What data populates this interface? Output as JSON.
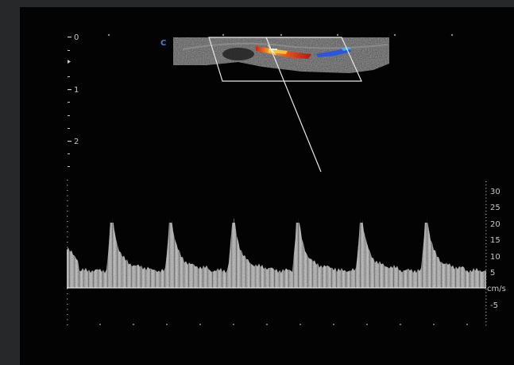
{
  "depth_scale": {
    "labels": [
      "0",
      "1",
      "2"
    ]
  },
  "color_mode": {
    "label": "C"
  },
  "velocity_scale": {
    "unit": "cm/s",
    "labels": [
      "30",
      "25",
      "20",
      "15",
      "10",
      "5",
      "-5"
    ]
  },
  "colors": {
    "background": "#030303",
    "frame": "#26282a",
    "flow_red": "#e8541a",
    "flow_orange": "#f5a02a",
    "flow_blue": "#2a55e0",
    "text": "#c8c8c8",
    "mode_label": "#4a7fd0"
  }
}
